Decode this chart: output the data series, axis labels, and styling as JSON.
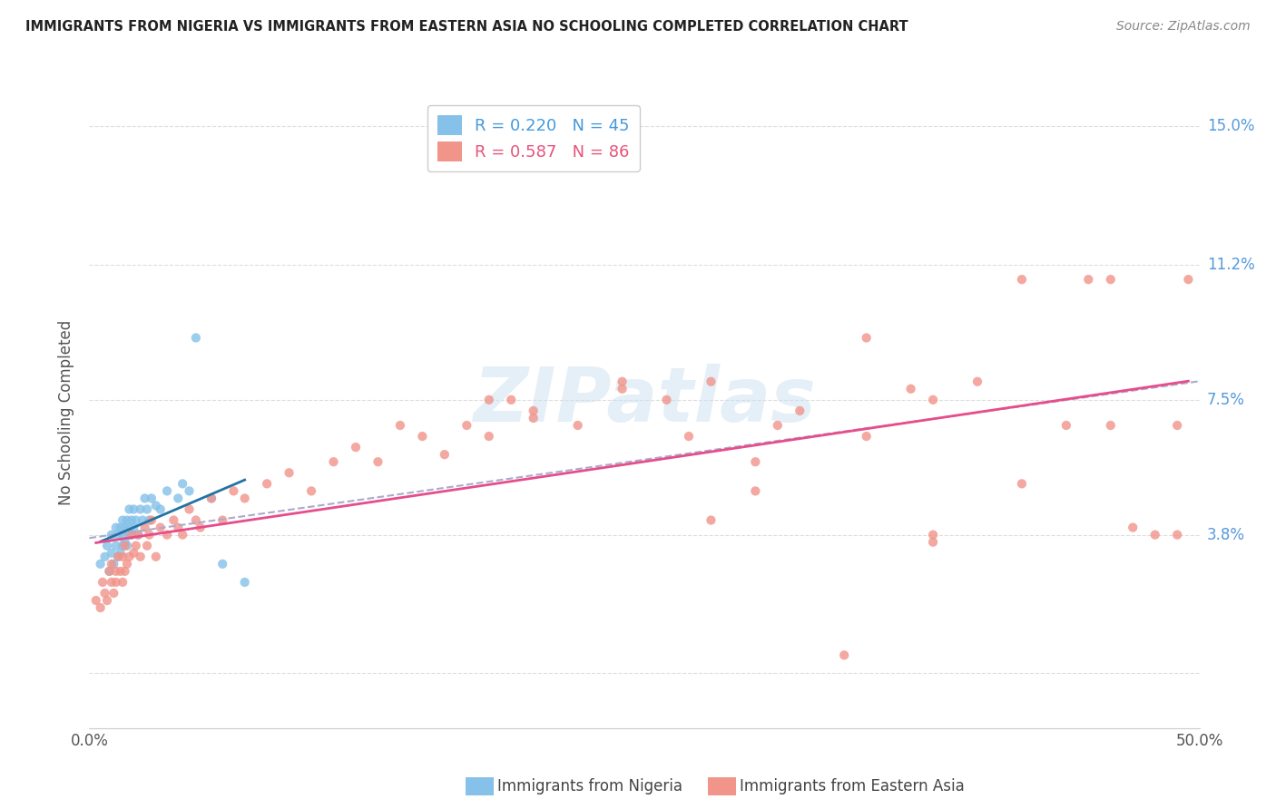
{
  "title": "IMMIGRANTS FROM NIGERIA VS IMMIGRANTS FROM EASTERN ASIA NO SCHOOLING COMPLETED CORRELATION CHART",
  "source": "Source: ZipAtlas.com",
  "ylabel": "No Schooling Completed",
  "xlabel_nigeria": "Immigrants from Nigeria",
  "xlabel_eastern_asia": "Immigrants from Eastern Asia",
  "xlim": [
    0.0,
    0.5
  ],
  "ylim": [
    -0.015,
    0.158
  ],
  "ytick_vals": [
    0.0,
    0.038,
    0.075,
    0.112,
    0.15
  ],
  "ytick_labels": [
    "",
    "3.8%",
    "7.5%",
    "11.2%",
    "15.0%"
  ],
  "xtick_vals": [
    0.0,
    0.5
  ],
  "xtick_labels": [
    "0.0%",
    "50.0%"
  ],
  "legend_nigeria_R": "0.220",
  "legend_nigeria_N": "45",
  "legend_eastern_R": "0.587",
  "legend_eastern_N": "86",
  "nigeria_color": "#85c1e9",
  "eastern_asia_color": "#f1948a",
  "nigeria_line_color": "#2471a3",
  "eastern_asia_line_color": "#e74c8b",
  "combined_dash_color": "#aaaacc",
  "watermark": "ZIPatlas",
  "nigeria_x": [
    0.005,
    0.007,
    0.008,
    0.009,
    0.01,
    0.01,
    0.011,
    0.012,
    0.012,
    0.013,
    0.013,
    0.014,
    0.014,
    0.015,
    0.015,
    0.015,
    0.016,
    0.016,
    0.017,
    0.017,
    0.018,
    0.018,
    0.018,
    0.019,
    0.019,
    0.02,
    0.02,
    0.021,
    0.022,
    0.023,
    0.024,
    0.025,
    0.026,
    0.027,
    0.028,
    0.03,
    0.032,
    0.035,
    0.04,
    0.042,
    0.045,
    0.048,
    0.055,
    0.06,
    0.07
  ],
  "nigeria_y": [
    0.03,
    0.032,
    0.035,
    0.028,
    0.033,
    0.038,
    0.03,
    0.035,
    0.04,
    0.032,
    0.038,
    0.033,
    0.04,
    0.035,
    0.038,
    0.042,
    0.036,
    0.04,
    0.035,
    0.042,
    0.038,
    0.04,
    0.045,
    0.038,
    0.042,
    0.04,
    0.045,
    0.042,
    0.038,
    0.045,
    0.042,
    0.048,
    0.045,
    0.042,
    0.048,
    0.046,
    0.045,
    0.05,
    0.048,
    0.052,
    0.05,
    0.092,
    0.048,
    0.03,
    0.025
  ],
  "eastern_asia_x": [
    0.003,
    0.005,
    0.006,
    0.007,
    0.008,
    0.009,
    0.01,
    0.01,
    0.011,
    0.012,
    0.012,
    0.013,
    0.014,
    0.015,
    0.015,
    0.016,
    0.016,
    0.017,
    0.018,
    0.019,
    0.02,
    0.021,
    0.022,
    0.023,
    0.025,
    0.026,
    0.027,
    0.028,
    0.03,
    0.032,
    0.035,
    0.038,
    0.04,
    0.042,
    0.045,
    0.048,
    0.05,
    0.055,
    0.06,
    0.065,
    0.07,
    0.08,
    0.09,
    0.1,
    0.11,
    0.12,
    0.13,
    0.14,
    0.15,
    0.16,
    0.17,
    0.18,
    0.19,
    0.2,
    0.22,
    0.24,
    0.26,
    0.27,
    0.28,
    0.3,
    0.31,
    0.32,
    0.35,
    0.37,
    0.38,
    0.4,
    0.42,
    0.44,
    0.46,
    0.47,
    0.48,
    0.49,
    0.495,
    0.3,
    0.35,
    0.28,
    0.38,
    0.42,
    0.46,
    0.2,
    0.24,
    0.18,
    0.49,
    0.45,
    0.38,
    0.34
  ],
  "eastern_asia_y": [
    0.02,
    0.018,
    0.025,
    0.022,
    0.02,
    0.028,
    0.025,
    0.03,
    0.022,
    0.028,
    0.025,
    0.032,
    0.028,
    0.025,
    0.032,
    0.028,
    0.035,
    0.03,
    0.032,
    0.038,
    0.033,
    0.035,
    0.038,
    0.032,
    0.04,
    0.035,
    0.038,
    0.042,
    0.032,
    0.04,
    0.038,
    0.042,
    0.04,
    0.038,
    0.045,
    0.042,
    0.04,
    0.048,
    0.042,
    0.05,
    0.048,
    0.052,
    0.055,
    0.05,
    0.058,
    0.062,
    0.058,
    0.068,
    0.065,
    0.06,
    0.068,
    0.065,
    0.075,
    0.07,
    0.068,
    0.078,
    0.075,
    0.065,
    0.08,
    0.058,
    0.068,
    0.072,
    0.065,
    0.078,
    0.075,
    0.08,
    0.052,
    0.068,
    0.068,
    0.04,
    0.038,
    0.068,
    0.108,
    0.05,
    0.092,
    0.042,
    0.038,
    0.108,
    0.108,
    0.072,
    0.08,
    0.075,
    0.038,
    0.108,
    0.036,
    0.005
  ]
}
